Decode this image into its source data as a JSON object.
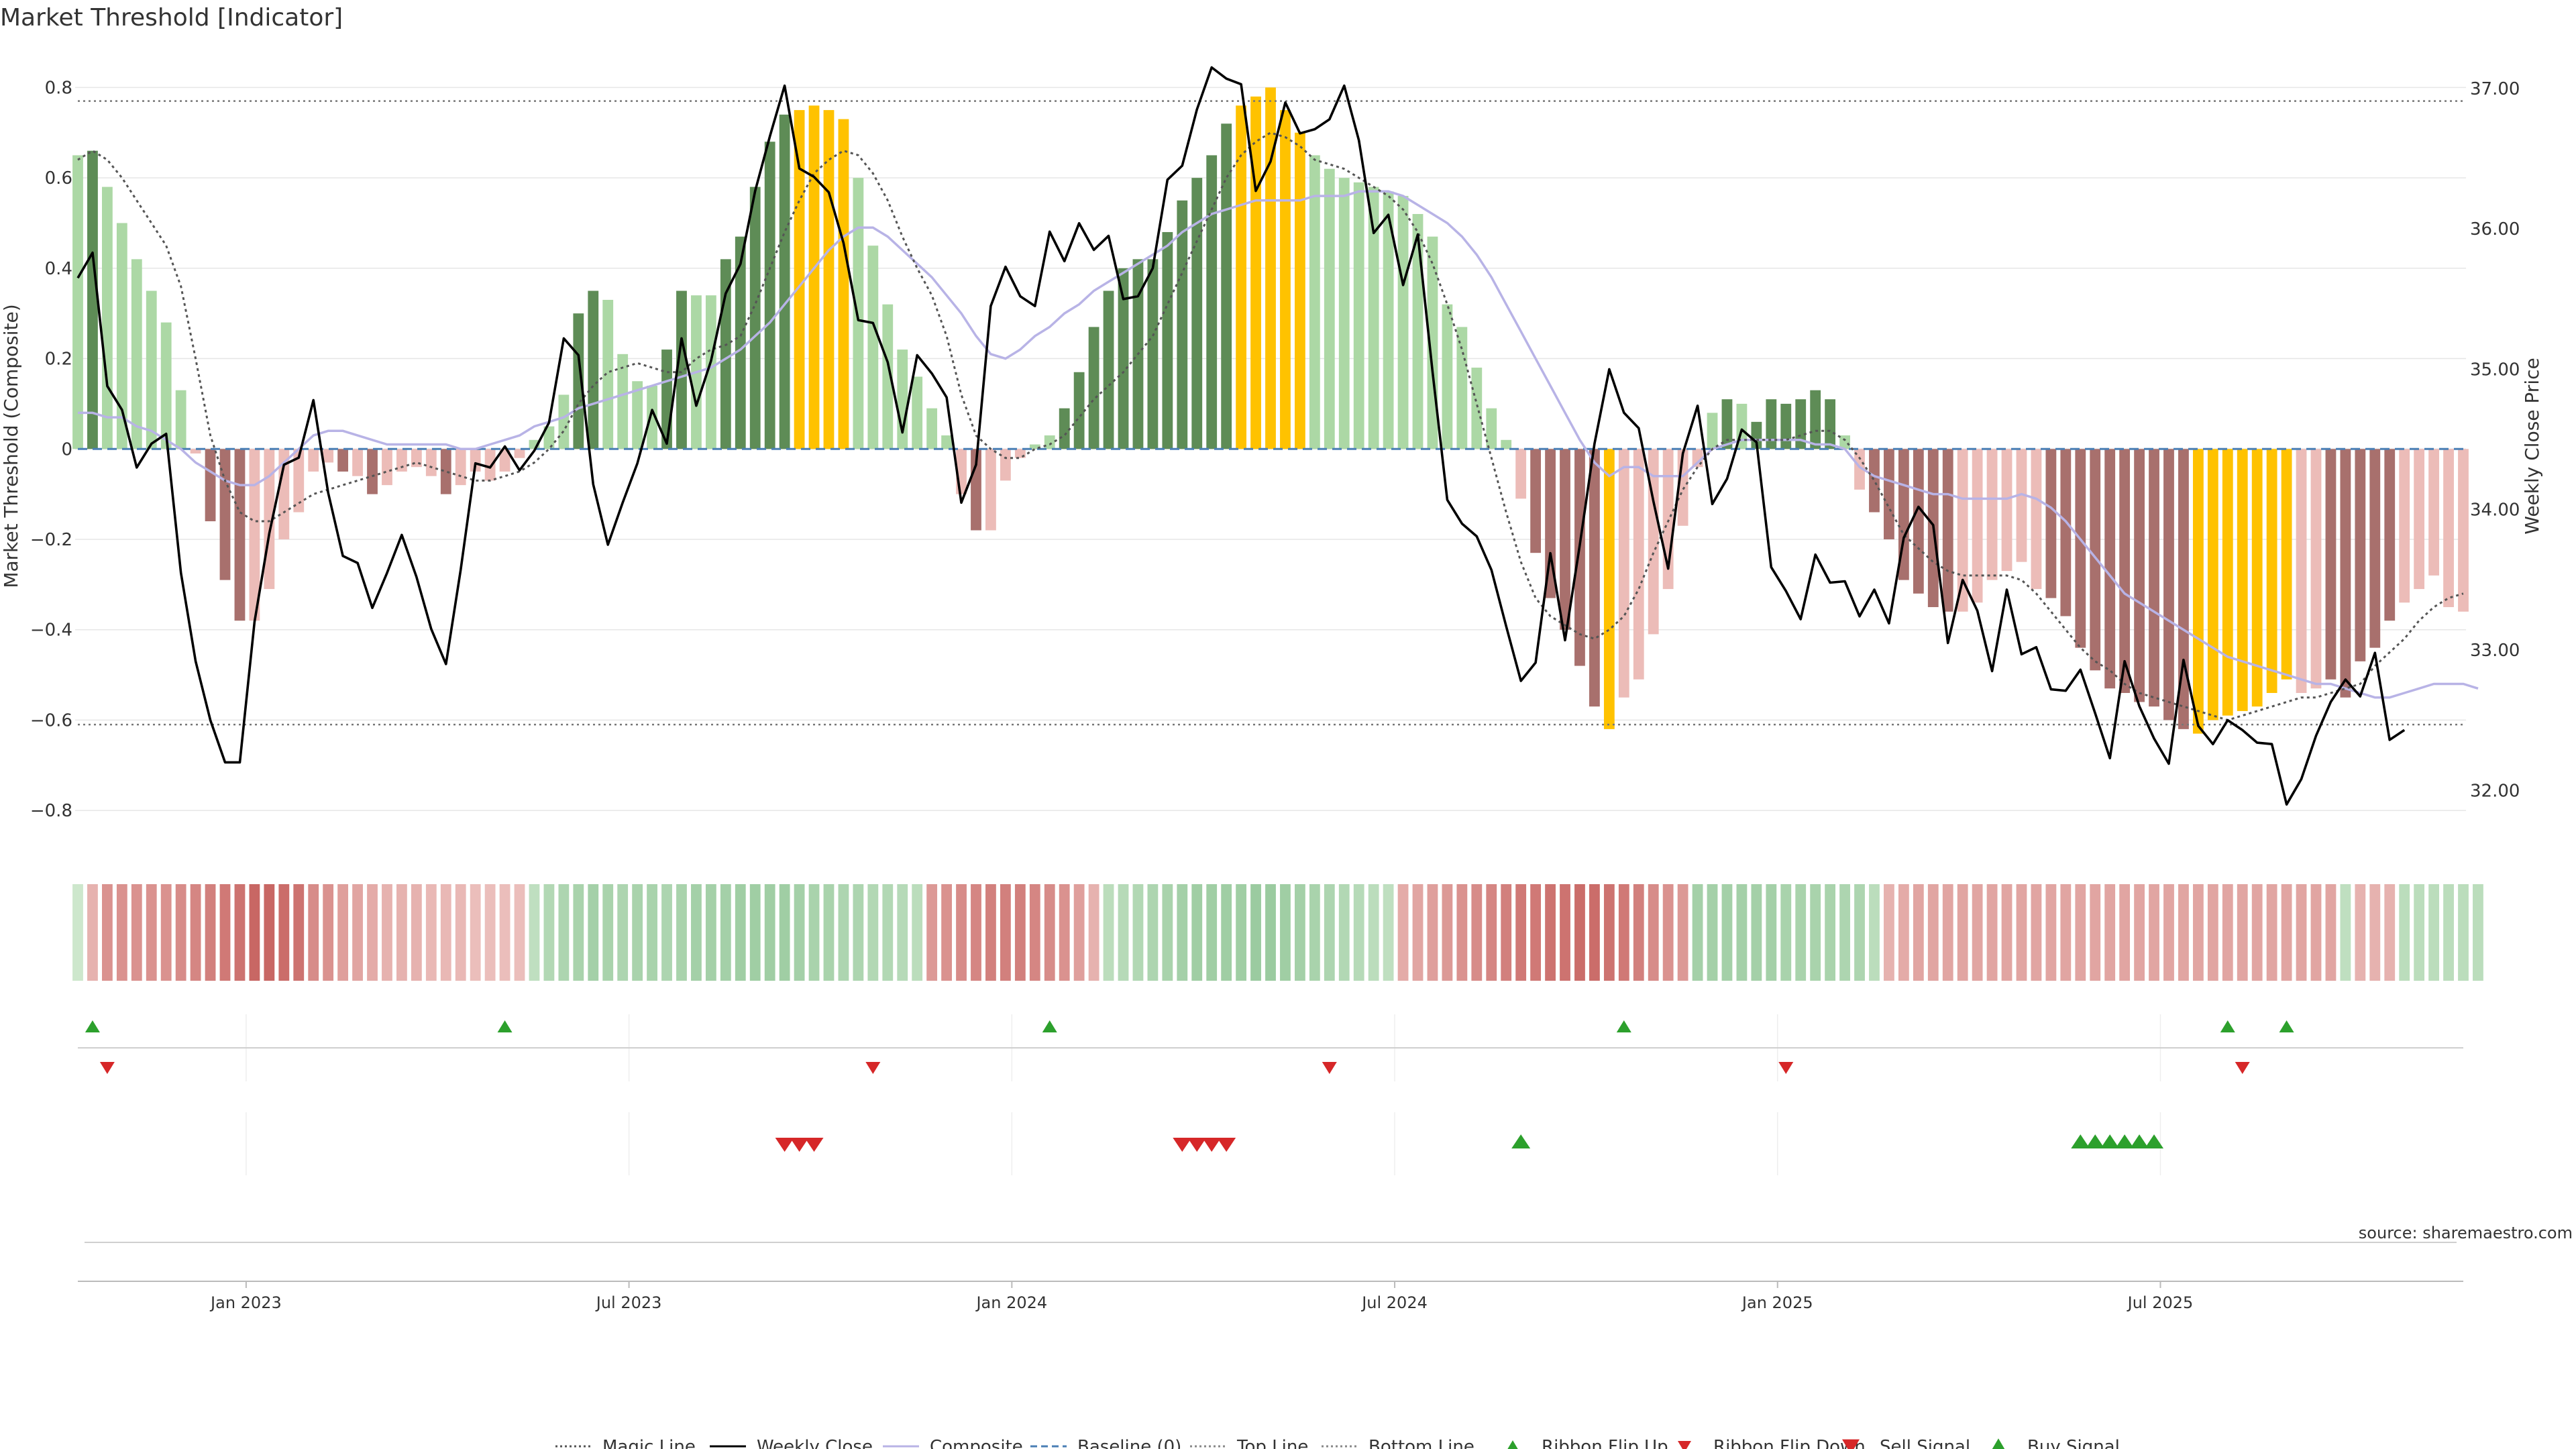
{
  "title": "Market Threshold [Indicator]",
  "source": "source: sharemaestro.com",
  "colors": {
    "bar_green_dark": "#5e8c56",
    "bar_green_light": "#acd8a5",
    "bar_red_dark": "#a8706d",
    "bar_red_light": "#ecbcb8",
    "bar_gold": "#ffc200",
    "close_line": "#000000",
    "composite_line": "#b8b3e6",
    "magic_line": "#555555",
    "baseline": "#4a7fb5",
    "signal_red": "#d62728",
    "signal_green": "#2ca02c"
  },
  "chart_data": {
    "type": "bar",
    "ylabel": "Market Threshold (Composite)",
    "ylabel_right": "Weekly Close Price",
    "ylim": [
      -0.88,
      0.86
    ],
    "ylim_right": [
      31.6,
      37.2
    ],
    "yticks": [
      "0.8",
      "0.6",
      "0.4",
      "0.2",
      "0",
      "−0.2",
      "−0.4",
      "−0.6",
      "−0.8"
    ],
    "yticks_right": [
      "37.00",
      "36.00",
      "35.00",
      "34.00",
      "33.00",
      "32.00"
    ],
    "xticks": [
      "Jan 2023",
      "Jul 2023",
      "Jan 2024",
      "Jul 2024",
      "Jan 2025",
      "Jul 2025"
    ],
    "start_date": "2022-10-14",
    "top_line": 0.77,
    "bottom_line": -0.61,
    "composite": [
      0.65,
      0.66,
      0.58,
      0.5,
      0.42,
      0.35,
      0.28,
      0.13,
      -0.01,
      -0.16,
      -0.29,
      -0.38,
      -0.38,
      -0.31,
      -0.2,
      -0.14,
      -0.05,
      -0.03,
      -0.05,
      -0.06,
      -0.1,
      -0.08,
      -0.05,
      -0.04,
      -0.06,
      -0.1,
      -0.08,
      -0.05,
      -0.07,
      -0.05,
      -0.02,
      0.02,
      0.05,
      0.12,
      0.3,
      0.35,
      0.33,
      0.21,
      0.15,
      0.14,
      0.22,
      0.35,
      0.34,
      0.34,
      0.42,
      0.47,
      0.58,
      0.68,
      0.74,
      0.75,
      0.76,
      0.75,
      0.73,
      0.6,
      0.45,
      0.32,
      0.22,
      0.16,
      0.09,
      0.03,
      -0.1,
      -0.18,
      -0.18,
      -0.07,
      -0.02,
      0.01,
      0.03,
      0.09,
      0.17,
      0.27,
      0.35,
      0.4,
      0.42,
      0.42,
      0.48,
      0.55,
      0.6,
      0.65,
      0.72,
      0.76,
      0.78,
      0.8,
      0.75,
      0.7,
      0.65,
      0.62,
      0.6,
      0.59,
      0.58,
      0.57,
      0.56,
      0.52,
      0.47,
      0.32,
      0.27,
      0.18,
      0.09,
      0.02,
      -0.11,
      -0.23,
      -0.33,
      -0.4,
      -0.48,
      -0.57,
      -0.62,
      -0.55,
      -0.51,
      -0.41,
      -0.31,
      -0.17,
      -0.04,
      0.08,
      0.11,
      0.1,
      0.06,
      0.11,
      0.1,
      0.11,
      0.13,
      0.11,
      0.03,
      -0.09,
      -0.14,
      -0.2,
      -0.29,
      -0.32,
      -0.35,
      -0.36,
      -0.36,
      -0.34,
      -0.29,
      -0.27,
      -0.25,
      -0.31,
      -0.33,
      -0.37,
      -0.44,
      -0.49,
      -0.53,
      -0.54,
      -0.56,
      -0.57,
      -0.6,
      -0.62,
      -0.63,
      -0.6,
      -0.59,
      -0.58,
      -0.57,
      -0.54,
      -0.51,
      -0.54,
      -0.53,
      -0.51,
      -0.55,
      -0.47,
      -0.44,
      -0.38,
      -0.34,
      -0.31,
      -0.28,
      -0.35,
      -0.36
    ],
    "bar_class": [
      "gl",
      "gd",
      "gl",
      "gl",
      "gl",
      "gl",
      "gl",
      "gl",
      "rl",
      "rd",
      "rd",
      "rd",
      "rl",
      "rl",
      "rl",
      "rl",
      "rl",
      "rl",
      "rd",
      "rl",
      "rd",
      "rl",
      "rl",
      "rl",
      "rl",
      "rd",
      "rl",
      "rl",
      "rl",
      "rl",
      "rl",
      "gl",
      "gl",
      "gl",
      "gd",
      "gd",
      "gl",
      "gl",
      "gl",
      "gl",
      "gd",
      "gd",
      "gl",
      "gl",
      "gd",
      "gd",
      "gd",
      "gd",
      "gd",
      "gold",
      "gold",
      "gold",
      "gold",
      "gl",
      "gl",
      "gl",
      "gl",
      "gl",
      "gl",
      "gl",
      "rl",
      "rd",
      "rl",
      "rl",
      "rl",
      "gl",
      "gl",
      "gd",
      "gd",
      "gd",
      "gd",
      "gd",
      "gd",
      "gd",
      "gd",
      "gd",
      "gd",
      "gd",
      "gd",
      "gold",
      "gold",
      "gold",
      "gold",
      "gold",
      "gl",
      "gl",
      "gl",
      "gl",
      "gl",
      "gl",
      "gl",
      "gl",
      "gl",
      "gl",
      "gl",
      "gl",
      "gl",
      "gl",
      "rl",
      "rd",
      "rd",
      "rd",
      "rd",
      "rd",
      "gold",
      "rl",
      "rl",
      "rl",
      "rl",
      "rl",
      "rl",
      "gl",
      "gd",
      "gl",
      "gd",
      "gd",
      "gd",
      "gd",
      "gd",
      "gd",
      "gl",
      "rl",
      "rd",
      "rd",
      "rd",
      "rd",
      "rd",
      "rd",
      "rl",
      "rl",
      "rl",
      "rl",
      "rl",
      "rl",
      "rd",
      "rd",
      "rd",
      "rd",
      "rd",
      "rd",
      "rd",
      "rd",
      "rd",
      "rd",
      "gold",
      "gold",
      "gold",
      "gold",
      "gold",
      "gold",
      "gold",
      "rl",
      "rl",
      "rd",
      "rd",
      "rd",
      "rd",
      "rd",
      "rl",
      "rl",
      "rl",
      "rl",
      "rl",
      "rd",
      "rd"
    ],
    "weekly_close": [
      35.65,
      35.83,
      34.88,
      34.71,
      34.3,
      34.47,
      34.54,
      33.55,
      32.92,
      32.5,
      32.2,
      32.2,
      33.2,
      33.83,
      34.32,
      34.37,
      34.78,
      34.12,
      33.67,
      33.62,
      33.3,
      33.55,
      33.82,
      33.52,
      33.15,
      32.9,
      33.57,
      34.33,
      34.3,
      34.45,
      34.28,
      34.42,
      34.62,
      35.22,
      35.1,
      34.18,
      33.75,
      34.05,
      34.33,
      34.71,
      34.47,
      35.22,
      34.74,
      35.06,
      35.54,
      35.75,
      36.27,
      36.66,
      37.02,
      36.43,
      36.37,
      36.26,
      35.9,
      35.35,
      35.33,
      35.05,
      34.55,
      35.1,
      34.97,
      34.8,
      34.05,
      34.32,
      35.45,
      35.73,
      35.52,
      35.45,
      35.98,
      35.77,
      36.04,
      35.85,
      35.95,
      35.5,
      35.52,
      35.72,
      36.35,
      36.45,
      36.85,
      37.15,
      37.07,
      37.03,
      36.27,
      36.48,
      36.9,
      36.68,
      36.71,
      36.78,
      37.02,
      36.63,
      35.97,
      36.1,
      35.6,
      35.96,
      34.98,
      34.07,
      33.9,
      33.81,
      33.57,
      33.17,
      32.78,
      32.91,
      33.69,
      33.07,
      33.75,
      34.47,
      35.0,
      34.69,
      34.58,
      34.06,
      33.58,
      34.4,
      34.74,
      34.04,
      34.22,
      34.57,
      34.48,
      33.59,
      33.42,
      33.22,
      33.68,
      33.48,
      33.49,
      33.24,
      33.43,
      33.19,
      33.8,
      34.02,
      33.89,
      33.05,
      33.5,
      33.28,
      32.85,
      33.43,
      32.97,
      33.02,
      32.72,
      32.71,
      32.86,
      32.55,
      32.23,
      32.92,
      32.6,
      32.37,
      32.19,
      32.93,
      32.46,
      32.33,
      32.5,
      32.43,
      32.34,
      32.33,
      31.9,
      32.08,
      32.39,
      32.63,
      32.79,
      32.67,
      32.98,
      32.36,
      32.43
    ],
    "composite_line": [
      0.08,
      0.08,
      0.07,
      0.07,
      0.05,
      0.04,
      0.02,
      0.0,
      -0.03,
      -0.05,
      -0.07,
      -0.08,
      -0.08,
      -0.06,
      -0.03,
      0.0,
      0.03,
      0.04,
      0.04,
      0.03,
      0.02,
      0.01,
      0.01,
      0.01,
      0.01,
      0.01,
      0.0,
      0.0,
      0.01,
      0.02,
      0.03,
      0.05,
      0.06,
      0.07,
      0.09,
      0.1,
      0.11,
      0.12,
      0.13,
      0.14,
      0.15,
      0.16,
      0.17,
      0.18,
      0.2,
      0.22,
      0.25,
      0.28,
      0.32,
      0.36,
      0.4,
      0.44,
      0.47,
      0.49,
      0.49,
      0.47,
      0.44,
      0.41,
      0.38,
      0.34,
      0.3,
      0.25,
      0.21,
      0.2,
      0.22,
      0.25,
      0.27,
      0.3,
      0.32,
      0.35,
      0.37,
      0.39,
      0.41,
      0.43,
      0.45,
      0.48,
      0.5,
      0.52,
      0.53,
      0.54,
      0.55,
      0.55,
      0.55,
      0.55,
      0.56,
      0.56,
      0.56,
      0.57,
      0.57,
      0.57,
      0.56,
      0.54,
      0.52,
      0.5,
      0.47,
      0.43,
      0.38,
      0.32,
      0.26,
      0.2,
      0.14,
      0.08,
      0.02,
      -0.03,
      -0.06,
      -0.04,
      -0.04,
      -0.06,
      -0.06,
      -0.06,
      -0.03,
      0.0,
      0.01,
      0.02,
      0.02,
      0.02,
      0.02,
      0.02,
      0.01,
      0.01,
      0.0,
      -0.04,
      -0.06,
      -0.07,
      -0.08,
      -0.09,
      -0.1,
      -0.1,
      -0.11,
      -0.11,
      -0.11,
      -0.11,
      -0.1,
      -0.11,
      -0.13,
      -0.16,
      -0.2,
      -0.24,
      -0.28,
      -0.32,
      -0.34,
      -0.36,
      -0.38,
      -0.4,
      -0.42,
      -0.44,
      -0.46,
      -0.47,
      -0.48,
      -0.49,
      -0.5,
      -0.51,
      -0.52,
      -0.52,
      -0.53,
      -0.54,
      -0.55,
      -0.55,
      -0.54,
      -0.53,
      -0.52,
      -0.52,
      -0.52,
      -0.53
    ],
    "magic_line": [
      0.64,
      0.66,
      0.64,
      0.6,
      0.55,
      0.5,
      0.45,
      0.36,
      0.2,
      0.03,
      -0.07,
      -0.14,
      -0.16,
      -0.16,
      -0.14,
      -0.12,
      -0.1,
      -0.09,
      -0.08,
      -0.07,
      -0.06,
      -0.05,
      -0.04,
      -0.03,
      -0.04,
      -0.05,
      -0.06,
      -0.07,
      -0.07,
      -0.06,
      -0.05,
      -0.03,
      -0.0,
      0.04,
      0.1,
      0.14,
      0.17,
      0.18,
      0.19,
      0.18,
      0.17,
      0.17,
      0.2,
      0.22,
      0.23,
      0.25,
      0.32,
      0.4,
      0.48,
      0.55,
      0.61,
      0.64,
      0.66,
      0.65,
      0.61,
      0.55,
      0.47,
      0.4,
      0.34,
      0.25,
      0.12,
      0.03,
      -0.0,
      -0.02,
      -0.02,
      0.0,
      0.01,
      0.03,
      0.07,
      0.11,
      0.14,
      0.17,
      0.21,
      0.25,
      0.32,
      0.39,
      0.46,
      0.53,
      0.6,
      0.65,
      0.68,
      0.7,
      0.69,
      0.67,
      0.64,
      0.63,
      0.62,
      0.6,
      0.58,
      0.56,
      0.53,
      0.48,
      0.41,
      0.32,
      0.22,
      0.1,
      -0.02,
      -0.14,
      -0.25,
      -0.33,
      -0.37,
      -0.39,
      -0.41,
      -0.42,
      -0.4,
      -0.37,
      -0.31,
      -0.23,
      -0.16,
      -0.09,
      -0.04,
      0.0,
      0.02,
      0.02,
      0.02,
      0.02,
      0.02,
      0.03,
      0.04,
      0.04,
      0.02,
      -0.02,
      -0.07,
      -0.13,
      -0.19,
      -0.22,
      -0.25,
      -0.27,
      -0.28,
      -0.28,
      -0.28,
      -0.28,
      -0.29,
      -0.32,
      -0.36,
      -0.4,
      -0.44,
      -0.47,
      -0.49,
      -0.52,
      -0.54,
      -0.55,
      -0.56,
      -0.57,
      -0.58,
      -0.59,
      -0.6,
      -0.59,
      -0.58,
      -0.57,
      -0.56,
      -0.55,
      -0.55,
      -0.54,
      -0.53,
      -0.52,
      -0.48,
      -0.45,
      -0.42,
      -0.38,
      -0.35,
      -0.33,
      -0.32
    ],
    "ribbon": [
      0.15,
      -0.3,
      -0.55,
      -0.55,
      -0.55,
      -0.55,
      -0.55,
      -0.6,
      -0.65,
      -0.7,
      -0.75,
      -0.8,
      -0.9,
      -0.9,
      -0.85,
      -0.8,
      -0.6,
      -0.55,
      -0.45,
      -0.4,
      -0.35,
      -0.3,
      -0.3,
      -0.3,
      -0.25,
      -0.25,
      -0.25,
      -0.2,
      -0.2,
      -0.2,
      -0.2,
      0.3,
      0.45,
      0.5,
      0.55,
      0.6,
      0.55,
      0.5,
      0.55,
      0.55,
      0.5,
      0.55,
      0.6,
      0.6,
      0.6,
      0.65,
      0.65,
      0.65,
      0.65,
      0.6,
      0.55,
      0.55,
      0.5,
      0.5,
      0.45,
      0.45,
      0.4,
      0.35,
      -0.5,
      -0.55,
      -0.6,
      -0.65,
      -0.7,
      -0.7,
      -0.7,
      -0.65,
      -0.6,
      -0.55,
      -0.45,
      -0.3,
      0.35,
      0.4,
      0.45,
      0.5,
      0.55,
      0.6,
      0.65,
      0.65,
      0.65,
      0.65,
      0.7,
      0.7,
      0.65,
      0.6,
      0.55,
      0.5,
      0.45,
      0.4,
      0.35,
      0.3,
      -0.35,
      -0.4,
      -0.45,
      -0.5,
      -0.55,
      -0.6,
      -0.65,
      -0.7,
      -0.75,
      -0.75,
      -0.8,
      -0.8,
      -0.85,
      -0.85,
      -0.8,
      -0.75,
      -0.7,
      -0.6,
      -0.55,
      -0.5,
      0.6,
      0.6,
      0.6,
      0.6,
      0.6,
      0.6,
      0.55,
      0.55,
      0.55,
      0.55,
      0.5,
      0.5,
      0.35,
      -0.3,
      -0.35,
      -0.4,
      -0.4,
      -0.4,
      -0.4,
      -0.4,
      -0.4,
      -0.4,
      -0.4,
      -0.4,
      -0.4,
      -0.4,
      -0.4,
      -0.4,
      -0.4,
      -0.4,
      -0.4,
      -0.4,
      -0.4,
      -0.4,
      -0.4,
      -0.4,
      -0.4,
      -0.4,
      -0.4,
      -0.4,
      -0.4,
      -0.4,
      -0.4,
      -0.4,
      0.3,
      -0.3,
      -0.3,
      -0.3,
      0.35,
      0.35,
      0.35,
      0.35,
      0.35,
      0.35
    ],
    "ribbon_flip_up": [
      1,
      29,
      66,
      105,
      146,
      150
    ],
    "ribbon_flip_down": [
      2,
      54,
      85,
      116,
      147
    ],
    "sell_signal": [
      48,
      49,
      50,
      75,
      76,
      77,
      78
    ],
    "buy_signal": [
      98,
      136,
      137,
      138,
      139,
      140,
      141
    ]
  },
  "legend": [
    {
      "label": "Magic Line",
      "kind": "dotted-line",
      "color": "#555555"
    },
    {
      "label": "Weekly Close",
      "kind": "solid-line",
      "color": "#000000"
    },
    {
      "label": "Composite",
      "kind": "solid-line",
      "color": "#b8b3e6"
    },
    {
      "label": "Baseline (0)",
      "kind": "dashed-line",
      "color": "#4a7fb5"
    },
    {
      "label": "Top Line",
      "kind": "dotted-line",
      "color": "#888888"
    },
    {
      "label": "Bottom Line",
      "kind": "dotted-line",
      "color": "#888888"
    },
    {
      "label": "Ribbon Flip Up",
      "kind": "triangle-up-small",
      "color": "#2ca02c"
    },
    {
      "label": "Ribbon Flip Down",
      "kind": "triangle-down-small",
      "color": "#d62728"
    },
    {
      "label": "Sell Signal",
      "kind": "triangle-down",
      "color": "#d62728"
    },
    {
      "label": "Buy Signal",
      "kind": "triangle-up",
      "color": "#2ca02c"
    }
  ]
}
